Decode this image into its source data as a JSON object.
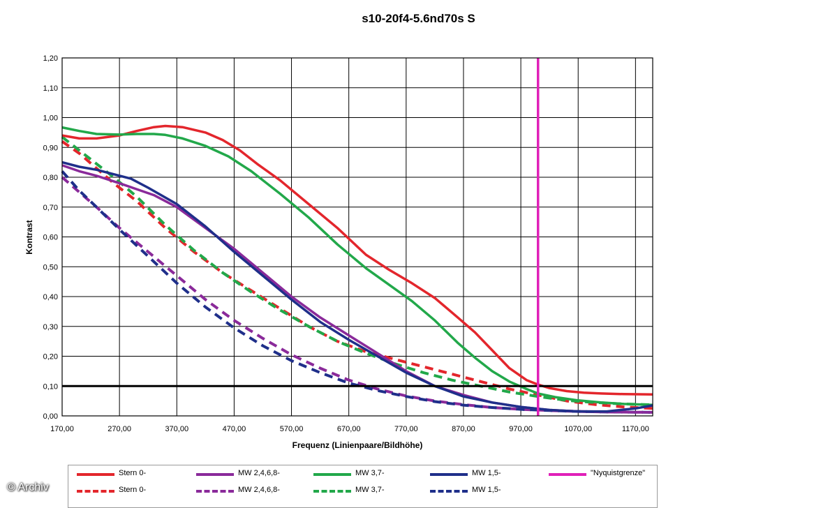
{
  "watermark": "© Archiv",
  "chart_data": {
    "type": "line",
    "title": "s10-20f4-5.6nd70s S",
    "xlabel": "Frequenz (Linienpaare/Bildhöhe)",
    "ylabel": "Kontrast",
    "xlim": [
      170,
      1200
    ],
    "ylim": [
      0,
      1.2
    ],
    "xticks": [
      170,
      270,
      370,
      470,
      570,
      670,
      770,
      870,
      970,
      1070,
      1170
    ],
    "xtick_labels": [
      "170,00",
      "270,00",
      "370,00",
      "470,00",
      "570,00",
      "670,00",
      "770,00",
      "870,00",
      "970,00",
      "1070,00",
      "1170,00"
    ],
    "yticks": [
      0,
      0.1,
      0.2,
      0.3,
      0.4,
      0.5,
      0.6,
      0.7,
      0.8,
      0.9,
      1.0,
      1.1,
      1.2
    ],
    "ytick_labels": [
      "0,00",
      "0,10",
      "0,20",
      "0,30",
      "0,40",
      "0,50",
      "0,60",
      "0,70",
      "0,80",
      "0,90",
      "1,00",
      "1,10",
      "1,20"
    ],
    "grid": true,
    "legend_position": "bottom",
    "reference_lines": [
      {
        "axis": "y",
        "value": 0.1,
        "color": "#000000"
      },
      {
        "axis": "x",
        "value": 1000,
        "color": "#e020b8",
        "name": "\"Nyquistgrenze\""
      }
    ],
    "series": [
      {
        "name": "Stern 0-",
        "color": "#e3262c",
        "dash": false,
        "points": [
          [
            170,
            0.94
          ],
          [
            200,
            0.93
          ],
          [
            230,
            0.93
          ],
          [
            270,
            0.94
          ],
          [
            300,
            0.955
          ],
          [
            330,
            0.968
          ],
          [
            350,
            0.972
          ],
          [
            380,
            0.968
          ],
          [
            420,
            0.95
          ],
          [
            450,
            0.925
          ],
          [
            480,
            0.89
          ],
          [
            510,
            0.845
          ],
          [
            550,
            0.79
          ],
          [
            600,
            0.71
          ],
          [
            650,
            0.63
          ],
          [
            700,
            0.54
          ],
          [
            740,
            0.49
          ],
          [
            780,
            0.445
          ],
          [
            820,
            0.395
          ],
          [
            860,
            0.33
          ],
          [
            890,
            0.28
          ],
          [
            920,
            0.22
          ],
          [
            950,
            0.16
          ],
          [
            980,
            0.12
          ],
          [
            1000,
            0.105
          ],
          [
            1020,
            0.093
          ],
          [
            1050,
            0.083
          ],
          [
            1080,
            0.078
          ],
          [
            1110,
            0.075
          ],
          [
            1150,
            0.073
          ],
          [
            1200,
            0.072
          ]
        ]
      },
      {
        "name": "MW 2,4,6,8-",
        "color": "#8a2a9a",
        "dash": false,
        "points": [
          [
            170,
            0.84
          ],
          [
            200,
            0.82
          ],
          [
            230,
            0.805
          ],
          [
            270,
            0.78
          ],
          [
            300,
            0.76
          ],
          [
            330,
            0.74
          ],
          [
            370,
            0.7
          ],
          [
            420,
            0.63
          ],
          [
            470,
            0.56
          ],
          [
            520,
            0.48
          ],
          [
            570,
            0.4
          ],
          [
            620,
            0.33
          ],
          [
            670,
            0.27
          ],
          [
            720,
            0.21
          ],
          [
            770,
            0.15
          ],
          [
            820,
            0.1
          ],
          [
            870,
            0.07
          ],
          [
            920,
            0.045
          ],
          [
            970,
            0.03
          ],
          [
            1020,
            0.02
          ],
          [
            1070,
            0.015
          ],
          [
            1120,
            0.013
          ],
          [
            1170,
            0.012
          ],
          [
            1200,
            0.012
          ]
        ]
      },
      {
        "name": "MW 3,7-",
        "color": "#22a84a",
        "dash": false,
        "points": [
          [
            170,
            0.967
          ],
          [
            200,
            0.955
          ],
          [
            230,
            0.945
          ],
          [
            270,
            0.943
          ],
          [
            300,
            0.945
          ],
          [
            330,
            0.945
          ],
          [
            350,
            0.942
          ],
          [
            380,
            0.93
          ],
          [
            420,
            0.905
          ],
          [
            460,
            0.87
          ],
          [
            500,
            0.82
          ],
          [
            550,
            0.745
          ],
          [
            600,
            0.665
          ],
          [
            650,
            0.575
          ],
          [
            700,
            0.495
          ],
          [
            740,
            0.44
          ],
          [
            780,
            0.385
          ],
          [
            820,
            0.32
          ],
          [
            860,
            0.245
          ],
          [
            890,
            0.195
          ],
          [
            920,
            0.15
          ],
          [
            950,
            0.115
          ],
          [
            980,
            0.09
          ],
          [
            1000,
            0.075
          ],
          [
            1030,
            0.063
          ],
          [
            1070,
            0.052
          ],
          [
            1110,
            0.045
          ],
          [
            1150,
            0.04
          ],
          [
            1200,
            0.037
          ]
        ]
      },
      {
        "name": "MW 1,5-",
        "color": "#1f2f8a",
        "dash": false,
        "points": [
          [
            170,
            0.85
          ],
          [
            200,
            0.835
          ],
          [
            230,
            0.825
          ],
          [
            260,
            0.81
          ],
          [
            290,
            0.795
          ],
          [
            320,
            0.765
          ],
          [
            370,
            0.71
          ],
          [
            420,
            0.635
          ],
          [
            470,
            0.55
          ],
          [
            520,
            0.47
          ],
          [
            570,
            0.39
          ],
          [
            620,
            0.315
          ],
          [
            670,
            0.255
          ],
          [
            720,
            0.2
          ],
          [
            770,
            0.145
          ],
          [
            820,
            0.1
          ],
          [
            870,
            0.065
          ],
          [
            920,
            0.045
          ],
          [
            970,
            0.03
          ],
          [
            1020,
            0.02
          ],
          [
            1070,
            0.015
          ],
          [
            1120,
            0.015
          ],
          [
            1170,
            0.025
          ],
          [
            1200,
            0.035
          ]
        ]
      },
      {
        "name": "Stern 0-",
        "color": "#e3262c",
        "dash": true,
        "points": [
          [
            170,
            0.92
          ],
          [
            200,
            0.88
          ],
          [
            230,
            0.83
          ],
          [
            260,
            0.78
          ],
          [
            300,
            0.72
          ],
          [
            350,
            0.63
          ],
          [
            400,
            0.55
          ],
          [
            450,
            0.48
          ],
          [
            500,
            0.42
          ],
          [
            550,
            0.36
          ],
          [
            600,
            0.3
          ],
          [
            650,
            0.25
          ],
          [
            700,
            0.215
          ],
          [
            750,
            0.19
          ],
          [
            800,
            0.165
          ],
          [
            850,
            0.14
          ],
          [
            900,
            0.115
          ],
          [
            950,
            0.09
          ],
          [
            1000,
            0.07
          ],
          [
            1050,
            0.05
          ],
          [
            1100,
            0.038
          ],
          [
            1150,
            0.03
          ],
          [
            1200,
            0.025
          ]
        ]
      },
      {
        "name": "MW 2,4,6,8-",
        "color": "#8a2a9a",
        "dash": true,
        "points": [
          [
            170,
            0.8
          ],
          [
            200,
            0.75
          ],
          [
            230,
            0.7
          ],
          [
            270,
            0.63
          ],
          [
            320,
            0.55
          ],
          [
            370,
            0.47
          ],
          [
            420,
            0.39
          ],
          [
            470,
            0.32
          ],
          [
            520,
            0.26
          ],
          [
            570,
            0.205
          ],
          [
            620,
            0.16
          ],
          [
            670,
            0.12
          ],
          [
            720,
            0.09
          ],
          [
            770,
            0.067
          ],
          [
            820,
            0.05
          ],
          [
            870,
            0.038
          ],
          [
            920,
            0.028
          ],
          [
            970,
            0.022
          ],
          [
            1020,
            0.018
          ],
          [
            1070,
            0.015
          ],
          [
            1120,
            0.013
          ],
          [
            1200,
            0.012
          ]
        ]
      },
      {
        "name": "MW 3,7-",
        "color": "#22a84a",
        "dash": true,
        "points": [
          [
            170,
            0.935
          ],
          [
            200,
            0.89
          ],
          [
            230,
            0.845
          ],
          [
            260,
            0.8
          ],
          [
            300,
            0.735
          ],
          [
            350,
            0.64
          ],
          [
            400,
            0.555
          ],
          [
            450,
            0.48
          ],
          [
            500,
            0.415
          ],
          [
            550,
            0.355
          ],
          [
            600,
            0.3
          ],
          [
            650,
            0.25
          ],
          [
            700,
            0.21
          ],
          [
            750,
            0.175
          ],
          [
            800,
            0.145
          ],
          [
            850,
            0.12
          ],
          [
            900,
            0.1
          ],
          [
            950,
            0.08
          ],
          [
            1000,
            0.065
          ],
          [
            1050,
            0.052
          ],
          [
            1100,
            0.045
          ],
          [
            1150,
            0.04
          ],
          [
            1200,
            0.037
          ]
        ]
      },
      {
        "name": "MW 1,5-",
        "color": "#1f2f8a",
        "dash": true,
        "points": [
          [
            170,
            0.82
          ],
          [
            200,
            0.755
          ],
          [
            230,
            0.7
          ],
          [
            270,
            0.625
          ],
          [
            320,
            0.535
          ],
          [
            370,
            0.445
          ],
          [
            420,
            0.365
          ],
          [
            470,
            0.295
          ],
          [
            520,
            0.235
          ],
          [
            570,
            0.185
          ],
          [
            620,
            0.145
          ],
          [
            670,
            0.11
          ],
          [
            720,
            0.085
          ],
          [
            770,
            0.065
          ],
          [
            820,
            0.048
          ],
          [
            870,
            0.036
          ],
          [
            920,
            0.028
          ],
          [
            970,
            0.022
          ],
          [
            1020,
            0.018
          ],
          [
            1070,
            0.015
          ],
          [
            1120,
            0.013
          ],
          [
            1200,
            0.012
          ]
        ]
      }
    ]
  },
  "legend": [
    {
      "label": "Stern 0-",
      "color": "#e3262c",
      "dash": false
    },
    {
      "label": "MW 2,4,6,8-",
      "color": "#8a2a9a",
      "dash": false
    },
    {
      "label": "MW 3,7-",
      "color": "#22a84a",
      "dash": false
    },
    {
      "label": "MW 1,5-",
      "color": "#1f2f8a",
      "dash": false
    },
    {
      "label": "\"Nyquistgrenze\"",
      "color": "#e020b8",
      "dash": false
    },
    {
      "label": "Stern 0-",
      "color": "#e3262c",
      "dash": true
    },
    {
      "label": "MW 2,4,6,8-",
      "color": "#8a2a9a",
      "dash": true
    },
    {
      "label": "MW 3,7-",
      "color": "#22a84a",
      "dash": true
    },
    {
      "label": "MW 1,5-",
      "color": "#1f2f8a",
      "dash": true
    }
  ]
}
